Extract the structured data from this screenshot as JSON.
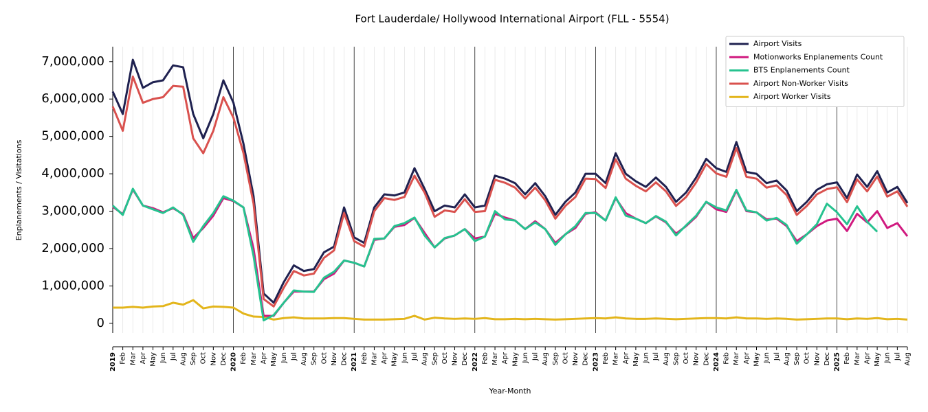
{
  "chart_data": {
    "type": "line",
    "title": "Fort Lauderdale/ Hollywood International Airport (FLL - 5554)",
    "xlabel": "Year-Month",
    "ylabel": "Enplanements / Visitations",
    "categories": [
      "2019",
      "Feb",
      "Mar",
      "Apr",
      "May",
      "Jun",
      "Jul",
      "Aug",
      "Sep",
      "Oct",
      "Nov",
      "Dec",
      "2020",
      "Feb",
      "Mar",
      "Apr",
      "May",
      "Jun",
      "Jul",
      "Aug",
      "Sep",
      "Oct",
      "Nov",
      "Dec",
      "2021",
      "Feb",
      "Mar",
      "Apr",
      "May",
      "Jun",
      "Jul",
      "Aug",
      "Sep",
      "Oct",
      "Nov",
      "Dec",
      "2022",
      "Feb",
      "Mar",
      "Apr",
      "May",
      "Jun",
      "Jul",
      "Aug",
      "Sep",
      "Oct",
      "Nov",
      "Dec",
      "2023",
      "Feb",
      "Mar",
      "Apr",
      "May",
      "Jun",
      "Jul",
      "Aug",
      "Sep",
      "Oct",
      "Nov",
      "Dec",
      "2024",
      "Feb",
      "Mar",
      "Apr",
      "May",
      "Jun",
      "Jul",
      "Aug",
      "Sep",
      "Oct",
      "Nov",
      "Dec",
      "2025",
      "Feb",
      "Mar",
      "Apr",
      "May",
      "Jun",
      "Jul",
      "Aug"
    ],
    "ylim": [
      -260000,
      7400000
    ],
    "yticks": [
      0,
      {
        "value": 1000000,
        "label": "1,000,000"
      },
      {
        "value": 2000000,
        "label": "2,000,000"
      },
      {
        "value": 3000000,
        "label": "3,000,000"
      },
      {
        "value": 4000000,
        "label": "4,000,000"
      },
      {
        "value": 5000000,
        "label": "5,000,000"
      },
      {
        "value": 6000000,
        "label": "6,000,000"
      },
      {
        "value": 7000000,
        "label": "7,000,000"
      }
    ],
    "legend": "upper right",
    "series": [
      {
        "name": "Airport Visits",
        "color": "#1f2150",
        "values": [
          6200000,
          5600000,
          7050000,
          6300000,
          6450000,
          6500000,
          6900000,
          6850000,
          5600000,
          4950000,
          5600000,
          6500000,
          5900000,
          4800000,
          3400000,
          800000,
          550000,
          1100000,
          1550000,
          1400000,
          1450000,
          1900000,
          2050000,
          3100000,
          2300000,
          2150000,
          3100000,
          3450000,
          3420000,
          3500000,
          4150000,
          3600000,
          3000000,
          3150000,
          3100000,
          3450000,
          3100000,
          3150000,
          3950000,
          3870000,
          3750000,
          3450000,
          3750000,
          3400000,
          2900000,
          3250000,
          3500000,
          4000000,
          4000000,
          3750000,
          4550000,
          4000000,
          3800000,
          3650000,
          3900000,
          3650000,
          3250000,
          3500000,
          3900000,
          4400000,
          4150000,
          4050000,
          4850000,
          4050000,
          4000000,
          3750000,
          3820000,
          3550000,
          3000000,
          3250000,
          3570000,
          3720000,
          3770000,
          3350000,
          3980000,
          3650000,
          4070000,
          3500000,
          3650000,
          3220000
        ]
      },
      {
        "name": "Motionworks Enplanements Count",
        "color": "#d0197f",
        "values": [
          3120000,
          2920000,
          3580000,
          3150000,
          3080000,
          2970000,
          3080000,
          2920000,
          2280000,
          2550000,
          2880000,
          3350000,
          3270000,
          3100000,
          2000000,
          200000,
          200000,
          550000,
          850000,
          850000,
          850000,
          1180000,
          1330000,
          1680000,
          1620000,
          1520000,
          2230000,
          2270000,
          2580000,
          2630000,
          2820000,
          2420000,
          2030000,
          2270000,
          2350000,
          2520000,
          2270000,
          2320000,
          2930000,
          2830000,
          2750000,
          2520000,
          2730000,
          2520000,
          2150000,
          2380000,
          2550000,
          2930000,
          2970000,
          2750000,
          3350000,
          2950000,
          2800000,
          2680000,
          2860000,
          2700000,
          2400000,
          2600000,
          2850000,
          3250000,
          3050000,
          2980000,
          3550000,
          3000000,
          2970000,
          2780000,
          2800000,
          2600000,
          2200000,
          2380000,
          2600000,
          2750000,
          2800000,
          2470000,
          2930000,
          2700000,
          3000000,
          2550000,
          2680000,
          2330000
        ]
      },
      {
        "name": "BTS Enplanements Count",
        "color": "#26c28f",
        "values": [
          3150000,
          2900000,
          3600000,
          3150000,
          3050000,
          2950000,
          3100000,
          2900000,
          2180000,
          2600000,
          2950000,
          3400000,
          3280000,
          3100000,
          1800000,
          80000,
          220000,
          550000,
          880000,
          850000,
          840000,
          1220000,
          1380000,
          1680000,
          1620000,
          1520000,
          2260000,
          2270000,
          2600000,
          2680000,
          2830000,
          2350000,
          2030000,
          2280000,
          2350000,
          2520000,
          2200000,
          2320000,
          3000000,
          2780000,
          2750000,
          2520000,
          2700000,
          2520000,
          2100000,
          2380000,
          2600000,
          2950000,
          2950000,
          2750000,
          3370000,
          2880000,
          2800000,
          2680000,
          2870000,
          2720000,
          2350000,
          2620000,
          2880000,
          3250000,
          3100000,
          3020000,
          3570000,
          3020000,
          2970000,
          2750000,
          2820000,
          2630000,
          2130000,
          2380000,
          2650000,
          3200000,
          2970000,
          2650000,
          3130000,
          2720000,
          2450000,
          null,
          null,
          null
        ]
      },
      {
        "name": "Airport Non-Worker Visits",
        "color": "#d9514e",
        "values": [
          5800000,
          5150000,
          6600000,
          5900000,
          6000000,
          6050000,
          6350000,
          6330000,
          4950000,
          4550000,
          5150000,
          6050000,
          5500000,
          4550000,
          3200000,
          650000,
          450000,
          950000,
          1400000,
          1280000,
          1330000,
          1750000,
          1950000,
          2950000,
          2200000,
          2050000,
          3000000,
          3350000,
          3300000,
          3380000,
          3950000,
          3500000,
          2850000,
          3020000,
          2980000,
          3320000,
          2980000,
          3000000,
          3840000,
          3760000,
          3630000,
          3340000,
          3630000,
          3290000,
          2800000,
          3140000,
          3380000,
          3870000,
          3860000,
          3620000,
          4390000,
          3870000,
          3680000,
          3530000,
          3770000,
          3530000,
          3140000,
          3380000,
          3770000,
          4260000,
          4010000,
          3920000,
          4690000,
          3920000,
          3870000,
          3630000,
          3690000,
          3430000,
          2900000,
          3140000,
          3450000,
          3590000,
          3640000,
          3240000,
          3850000,
          3530000,
          3930000,
          3390000,
          3530000,
          3120000
        ]
      },
      {
        "name": "Airport Worker Visits",
        "color": "#e3b51b",
        "values": [
          420000,
          420000,
          440000,
          420000,
          450000,
          460000,
          550000,
          500000,
          620000,
          400000,
          450000,
          440000,
          420000,
          260000,
          180000,
          170000,
          100000,
          140000,
          160000,
          130000,
          130000,
          130000,
          140000,
          140000,
          120000,
          100000,
          100000,
          100000,
          110000,
          120000,
          200000,
          100000,
          150000,
          130000,
          120000,
          130000,
          120000,
          140000,
          110000,
          110000,
          120000,
          110000,
          120000,
          110000,
          100000,
          110000,
          120000,
          130000,
          140000,
          130000,
          160000,
          130000,
          120000,
          120000,
          130000,
          120000,
          110000,
          120000,
          130000,
          140000,
          140000,
          130000,
          160000,
          130000,
          130000,
          120000,
          130000,
          120000,
          100000,
          110000,
          120000,
          130000,
          130000,
          110000,
          130000,
          120000,
          140000,
          110000,
          120000,
          100000
        ]
      }
    ]
  }
}
